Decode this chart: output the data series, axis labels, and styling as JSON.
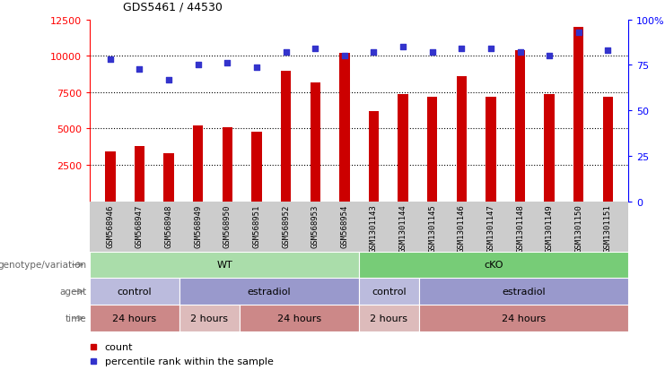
{
  "title": "GDS5461 / 44530",
  "samples": [
    "GSM568946",
    "GSM568947",
    "GSM568948",
    "GSM568949",
    "GSM568950",
    "GSM568951",
    "GSM568952",
    "GSM568953",
    "GSM568954",
    "GSM1301143",
    "GSM1301144",
    "GSM1301145",
    "GSM1301146",
    "GSM1301147",
    "GSM1301148",
    "GSM1301149",
    "GSM1301150",
    "GSM1301151"
  ],
  "counts": [
    3400,
    3800,
    3300,
    5200,
    5100,
    4800,
    9000,
    8200,
    10200,
    6200,
    7400,
    7200,
    8600,
    7200,
    10400,
    7400,
    12000,
    7200
  ],
  "percentile_ranks": [
    78,
    73,
    67,
    75,
    76,
    74,
    82,
    84,
    80,
    82,
    85,
    82,
    84,
    84,
    82,
    80,
    93,
    83
  ],
  "bar_color": "#cc0000",
  "dot_color": "#3333cc",
  "ylim_left": [
    0,
    12500
  ],
  "ylim_right": [
    0,
    100
  ],
  "yticks_left": [
    2500,
    5000,
    7500,
    10000,
    12500
  ],
  "yticks_right": [
    0,
    25,
    50,
    75,
    100
  ],
  "grid_values": [
    2500,
    5000,
    7500,
    10000
  ],
  "genotype_groups": [
    {
      "label": "WT",
      "start": 0,
      "end": 9,
      "color": "#aaddaa"
    },
    {
      "label": "cKO",
      "start": 9,
      "end": 18,
      "color": "#77cc77"
    }
  ],
  "agent_groups": [
    {
      "label": "control",
      "start": 0,
      "end": 3,
      "color": "#bbbbdd"
    },
    {
      "label": "estradiol",
      "start": 3,
      "end": 9,
      "color": "#9999cc"
    },
    {
      "label": "control",
      "start": 9,
      "end": 11,
      "color": "#bbbbdd"
    },
    {
      "label": "estradiol",
      "start": 11,
      "end": 18,
      "color": "#9999cc"
    }
  ],
  "time_groups": [
    {
      "label": "24 hours",
      "start": 0,
      "end": 3,
      "color": "#cc8888"
    },
    {
      "label": "2 hours",
      "start": 3,
      "end": 5,
      "color": "#ddbbbb"
    },
    {
      "label": "24 hours",
      "start": 5,
      "end": 9,
      "color": "#cc8888"
    },
    {
      "label": "2 hours",
      "start": 9,
      "end": 11,
      "color": "#ddbbbb"
    },
    {
      "label": "24 hours",
      "start": 11,
      "end": 18,
      "color": "#cc8888"
    }
  ],
  "row_labels": [
    "genotype/variation",
    "agent",
    "time"
  ],
  "legend_items": [
    {
      "color": "#cc0000",
      "label": "count"
    },
    {
      "color": "#3333cc",
      "label": "percentile rank within the sample"
    }
  ],
  "sample_bg_color": "#cccccc",
  "fig_width": 7.41,
  "fig_height": 4.14
}
